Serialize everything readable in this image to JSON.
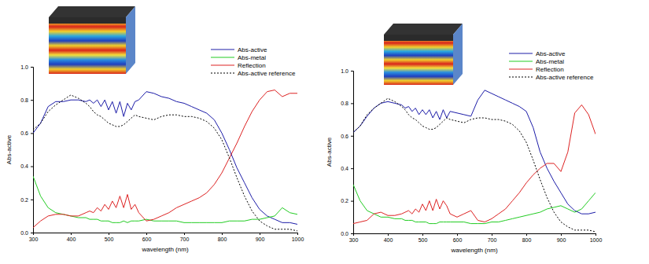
{
  "chart_data": [
    {
      "type": "line",
      "x_label": "wavelength (nm)",
      "y_label": "Abs-active",
      "x": [
        300,
        320,
        340,
        360,
        380,
        400,
        420,
        440,
        450,
        460,
        470,
        480,
        490,
        500,
        510,
        520,
        530,
        540,
        550,
        560,
        570,
        580,
        600,
        620,
        640,
        660,
        680,
        700,
        720,
        740,
        760,
        780,
        800,
        820,
        840,
        860,
        880,
        900,
        920,
        940,
        960,
        980,
        1000
      ],
      "xlim": [
        300,
        1000
      ],
      "xticks": [
        300,
        400,
        500,
        600,
        700,
        800,
        900,
        1000
      ],
      "ylim": [
        0,
        1
      ],
      "yticks": [
        {
          "value": 0,
          "label": "0.0"
        },
        0.2,
        0.4,
        0.6,
        0.8,
        {
          "value": 1,
          "label": "1.0"
        }
      ],
      "grid": false,
      "legend": "top-right",
      "series": [
        {
          "name": "Abs-active",
          "color": "#1c1ca8",
          "line_style": "solid",
          "values": [
            0.6,
            0.66,
            0.76,
            0.79,
            0.79,
            0.8,
            0.8,
            0.79,
            0.8,
            0.78,
            0.8,
            0.76,
            0.8,
            0.74,
            0.79,
            0.72,
            0.79,
            0.7,
            0.78,
            0.74,
            0.79,
            0.8,
            0.85,
            0.84,
            0.82,
            0.81,
            0.79,
            0.78,
            0.76,
            0.74,
            0.72,
            0.68,
            0.6,
            0.5,
            0.39,
            0.3,
            0.21,
            0.14,
            0.1,
            0.08,
            0.06,
            0.06,
            0.05
          ]
        },
        {
          "name": "Abs-metal",
          "color": "#22cc22",
          "line_style": "solid",
          "values": [
            0.34,
            0.22,
            0.15,
            0.12,
            0.11,
            0.1,
            0.09,
            0.09,
            0.08,
            0.08,
            0.08,
            0.07,
            0.07,
            0.07,
            0.06,
            0.06,
            0.06,
            0.07,
            0.06,
            0.07,
            0.07,
            0.07,
            0.08,
            0.07,
            0.07,
            0.07,
            0.07,
            0.06,
            0.06,
            0.06,
            0.06,
            0.06,
            0.06,
            0.07,
            0.07,
            0.07,
            0.08,
            0.08,
            0.09,
            0.1,
            0.15,
            0.12,
            0.11
          ]
        },
        {
          "name": "Reflection",
          "color": "#dd2222",
          "line_style": "solid",
          "values": [
            0.03,
            0.07,
            0.1,
            0.11,
            0.11,
            0.1,
            0.1,
            0.12,
            0.13,
            0.12,
            0.15,
            0.13,
            0.17,
            0.14,
            0.19,
            0.15,
            0.22,
            0.15,
            0.23,
            0.14,
            0.17,
            0.12,
            0.07,
            0.08,
            0.1,
            0.12,
            0.15,
            0.17,
            0.19,
            0.21,
            0.24,
            0.29,
            0.36,
            0.45,
            0.54,
            0.64,
            0.73,
            0.8,
            0.85,
            0.86,
            0.82,
            0.84,
            0.84
          ]
        },
        {
          "name": "Abs-active reference",
          "color": "#000000",
          "line_style": "dotted",
          "values": [
            0.62,
            0.66,
            0.73,
            0.77,
            0.8,
            0.83,
            0.81,
            0.78,
            0.76,
            0.73,
            0.71,
            0.7,
            0.68,
            0.66,
            0.65,
            0.64,
            0.64,
            0.65,
            0.67,
            0.69,
            0.71,
            0.7,
            0.69,
            0.68,
            0.7,
            0.71,
            0.71,
            0.7,
            0.7,
            0.69,
            0.67,
            0.63,
            0.56,
            0.45,
            0.33,
            0.22,
            0.13,
            0.07,
            0.04,
            0.02,
            0.02,
            0.02,
            0.01
          ]
        }
      ]
    },
    {
      "type": "line",
      "x_label": "wavelength (nm)",
      "y_label": "Abs-active",
      "x": [
        300,
        320,
        340,
        360,
        380,
        400,
        420,
        440,
        450,
        460,
        470,
        480,
        490,
        500,
        510,
        520,
        530,
        540,
        550,
        560,
        570,
        580,
        600,
        620,
        640,
        660,
        680,
        700,
        720,
        740,
        760,
        780,
        800,
        820,
        840,
        860,
        880,
        900,
        920,
        940,
        960,
        980,
        1000
      ],
      "xlim": [
        300,
        1000
      ],
      "xticks": [
        300,
        400,
        500,
        600,
        700,
        800,
        900,
        1000
      ],
      "ylim": [
        0,
        1
      ],
      "yticks": [
        {
          "value": 0,
          "label": "0.0"
        },
        0.2,
        0.4,
        0.6,
        0.8,
        {
          "value": 1,
          "label": "1.0"
        }
      ],
      "grid": false,
      "legend": "top-right",
      "series": [
        {
          "name": "Abs-active",
          "color": "#1c1ca8",
          "line_style": "solid",
          "values": [
            0.62,
            0.66,
            0.72,
            0.77,
            0.8,
            0.81,
            0.8,
            0.79,
            0.77,
            0.78,
            0.75,
            0.77,
            0.73,
            0.76,
            0.73,
            0.76,
            0.71,
            0.75,
            0.7,
            0.76,
            0.71,
            0.75,
            0.74,
            0.73,
            0.72,
            0.82,
            0.88,
            0.86,
            0.84,
            0.82,
            0.8,
            0.78,
            0.75,
            0.65,
            0.5,
            0.4,
            0.32,
            0.25,
            0.18,
            0.14,
            0.12,
            0.12,
            0.13
          ]
        },
        {
          "name": "Abs-metal",
          "color": "#22cc22",
          "line_style": "solid",
          "values": [
            0.3,
            0.2,
            0.14,
            0.12,
            0.1,
            0.1,
            0.09,
            0.09,
            0.08,
            0.08,
            0.08,
            0.07,
            0.07,
            0.07,
            0.07,
            0.06,
            0.06,
            0.06,
            0.07,
            0.07,
            0.07,
            0.07,
            0.07,
            0.07,
            0.06,
            0.06,
            0.06,
            0.07,
            0.07,
            0.08,
            0.09,
            0.1,
            0.11,
            0.12,
            0.13,
            0.15,
            0.16,
            0.17,
            0.15,
            0.13,
            0.15,
            0.2,
            0.25
          ]
        },
        {
          "name": "Reflection",
          "color": "#dd2222",
          "line_style": "solid",
          "values": [
            0.06,
            0.07,
            0.08,
            0.12,
            0.13,
            0.11,
            0.11,
            0.12,
            0.13,
            0.14,
            0.12,
            0.15,
            0.13,
            0.18,
            0.14,
            0.2,
            0.14,
            0.21,
            0.15,
            0.2,
            0.17,
            0.12,
            0.1,
            0.12,
            0.14,
            0.08,
            0.07,
            0.09,
            0.12,
            0.15,
            0.2,
            0.25,
            0.31,
            0.36,
            0.4,
            0.43,
            0.43,
            0.38,
            0.5,
            0.74,
            0.79,
            0.73,
            0.61
          ]
        },
        {
          "name": "Abs-active reference",
          "color": "#000000",
          "line_style": "dotted",
          "values": [
            0.62,
            0.66,
            0.73,
            0.77,
            0.8,
            0.83,
            0.81,
            0.78,
            0.76,
            0.73,
            0.71,
            0.7,
            0.68,
            0.66,
            0.65,
            0.64,
            0.64,
            0.65,
            0.67,
            0.69,
            0.71,
            0.7,
            0.69,
            0.68,
            0.7,
            0.71,
            0.71,
            0.7,
            0.7,
            0.69,
            0.67,
            0.63,
            0.56,
            0.45,
            0.33,
            0.22,
            0.13,
            0.07,
            0.04,
            0.02,
            0.02,
            0.02,
            0.01
          ]
        }
      ]
    }
  ]
}
